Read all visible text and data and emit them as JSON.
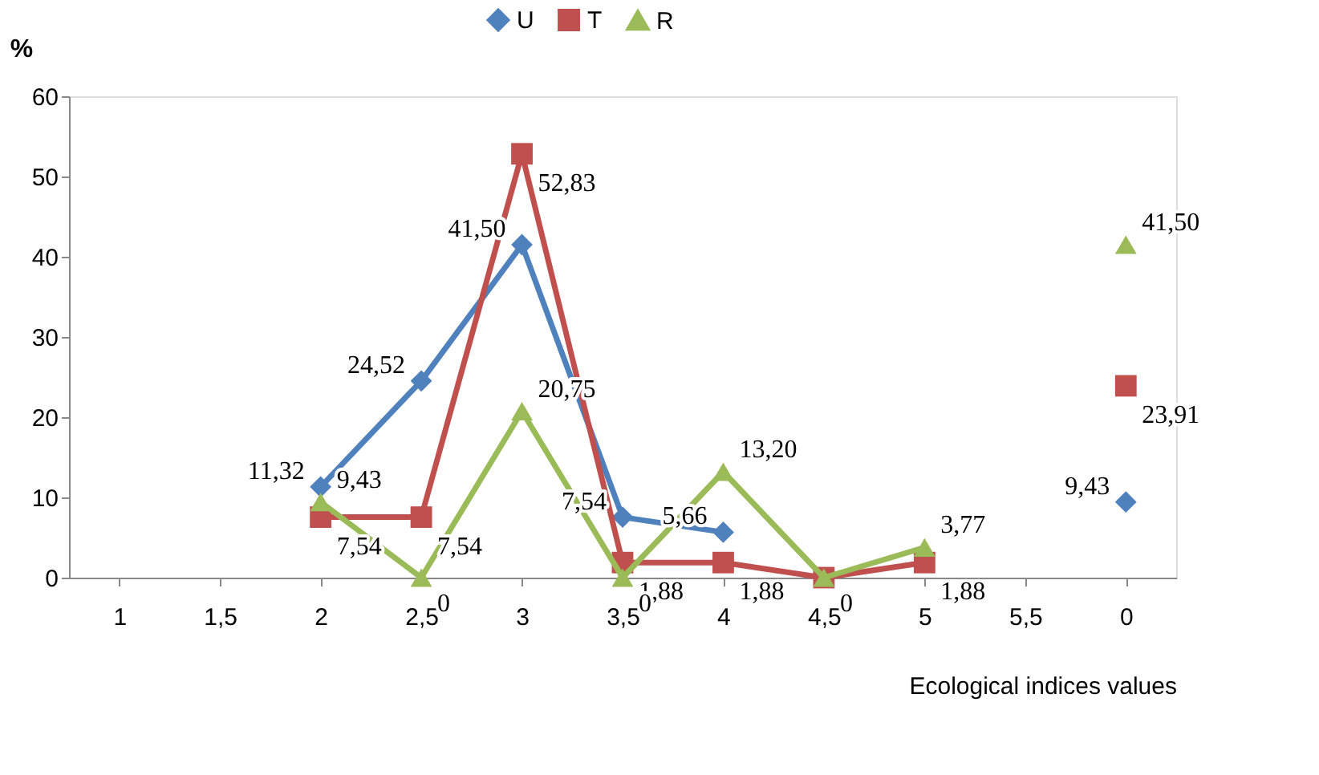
{
  "chart_data": {
    "type": "line",
    "ylabel": "%",
    "xlabel": "Ecological indices  values",
    "categories": [
      "1",
      "1,5",
      "2",
      "2,5",
      "3",
      "3,5",
      "4",
      "4,5",
      "5",
      "5,5",
      "0"
    ],
    "series": [
      {
        "name": "U",
        "color": "#4f81bd",
        "marker": "diamond",
        "values": [
          null,
          null,
          11.32,
          24.52,
          41.5,
          7.54,
          5.66,
          null,
          null,
          null,
          9.43
        ],
        "value_labels": [
          null,
          null,
          "11,32",
          "24,52",
          "41,50",
          "7,54",
          "5,66",
          null,
          null,
          null,
          "9,43"
        ]
      },
      {
        "name": "T",
        "color": "#c0504d",
        "marker": "square",
        "values": [
          null,
          null,
          7.54,
          7.54,
          52.83,
          1.88,
          1.88,
          0,
          1.88,
          null,
          23.91
        ],
        "value_labels": [
          null,
          null,
          "7,54",
          "7,54",
          "52,83",
          "1,88",
          "1,88",
          null,
          "1,88",
          null,
          "23,91"
        ]
      },
      {
        "name": "R",
        "color": "#9bbb59",
        "marker": "triangle",
        "values": [
          null,
          null,
          9.43,
          0,
          20.75,
          0,
          13.2,
          0,
          3.77,
          null,
          41.5
        ],
        "value_labels": [
          null,
          null,
          "9,43",
          "0",
          "20,75",
          "0",
          "13,20",
          "0",
          "3,77",
          null,
          "41,50"
        ]
      }
    ],
    "ylim": [
      0,
      60
    ],
    "yticks": [
      0,
      10,
      20,
      30,
      40,
      50,
      60
    ],
    "grid": false,
    "legend": "top"
  }
}
